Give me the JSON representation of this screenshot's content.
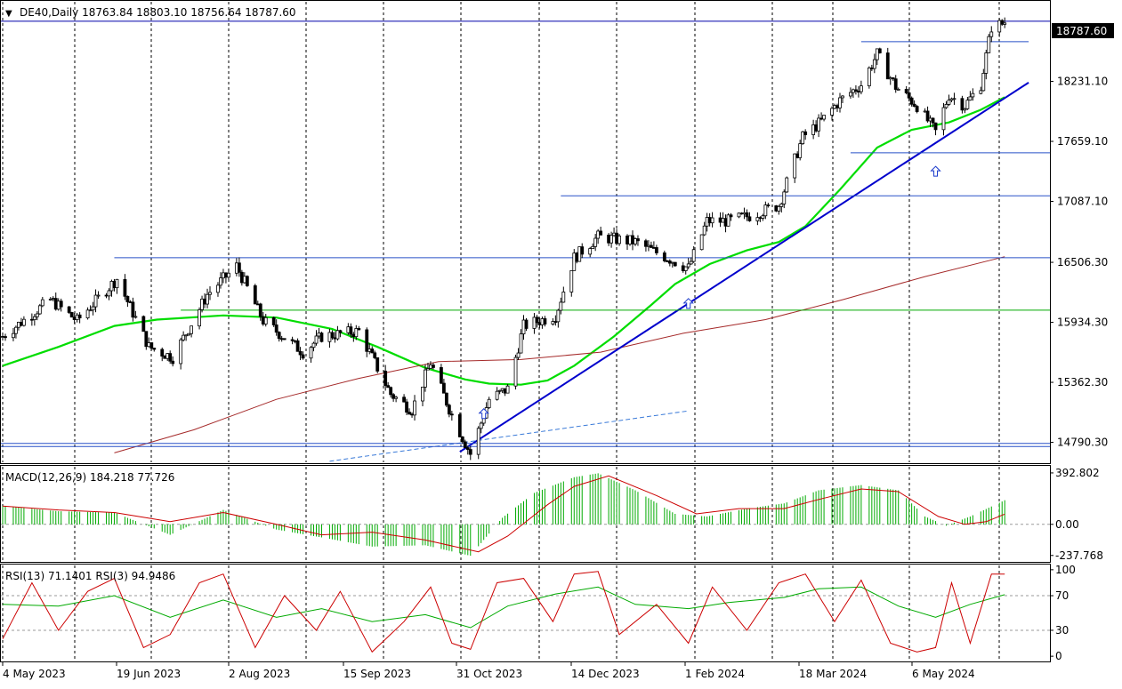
{
  "header": {
    "symbol_caret": "▼",
    "ohlc_text": "DE40,Daily  18763.84 18803.10 18756.64 18787.60"
  },
  "chart_data": [
    {
      "type": "candlestick",
      "symbol": "DE40",
      "timeframe": "Daily",
      "last": {
        "open": 18763.84,
        "high": 18803.1,
        "low": 18756.64,
        "close": 18787.6
      },
      "price_tag": "18787.60",
      "y_ticks": [
        "18231.10",
        "17659.10",
        "17087.10",
        "16506.30",
        "15934.30",
        "15362.30",
        "14790.30"
      ],
      "y_tick_values": [
        18231.1,
        17659.1,
        17087.1,
        16506.3,
        15934.3,
        15362.3,
        14790.3
      ],
      "ylim": [
        14600,
        18990
      ],
      "x_ticks": [
        "4 May 2023",
        "19 Jun 2023",
        "2 Aug 2023",
        "15 Sep 2023",
        "31 Oct 2023",
        "14 Dec 2023",
        "1 Feb 2024",
        "18 Mar 2024",
        "6 May 2024"
      ],
      "grid": "vertical dashed",
      "close_path": [
        [
          "2023-05-04",
          15800
        ],
        [
          "2023-05-22",
          16150
        ],
        [
          "2023-06-01",
          15950
        ],
        [
          "2023-06-16",
          16350
        ],
        [
          "2023-06-28",
          15700
        ],
        [
          "2023-07-07",
          15600
        ],
        [
          "2023-07-20",
          16200
        ],
        [
          "2023-07-31",
          16470
        ],
        [
          "2023-08-10",
          15950
        ],
        [
          "2023-08-25",
          15650
        ],
        [
          "2023-09-01",
          15800
        ],
        [
          "2023-09-15",
          15850
        ],
        [
          "2023-09-27",
          15250
        ],
        [
          "2023-10-05",
          15100
        ],
        [
          "2023-10-12",
          15550
        ],
        [
          "2023-10-20",
          15050
        ],
        [
          "2023-10-27",
          14680
        ],
        [
          "2023-11-03",
          15200
        ],
        [
          "2023-11-10",
          15300
        ],
        [
          "2023-11-16",
          15900
        ],
        [
          "2023-11-28",
          16000
        ],
        [
          "2023-12-05",
          16550
        ],
        [
          "2023-12-14",
          16750
        ],
        [
          "2023-12-28",
          16700
        ],
        [
          "2024-01-05",
          16600
        ],
        [
          "2024-01-17",
          16450
        ],
        [
          "2024-01-24",
          16900
        ],
        [
          "2024-02-01",
          16900
        ],
        [
          "2024-02-09",
          16950
        ],
        [
          "2024-02-20",
          17050
        ],
        [
          "2024-02-29",
          17700
        ],
        [
          "2024-03-07",
          17850
        ],
        [
          "2024-03-14",
          18050
        ],
        [
          "2024-03-22",
          18200
        ],
        [
          "2024-03-28",
          18490
        ],
        [
          "2024-04-04",
          18180
        ],
        [
          "2024-04-12",
          18000
        ],
        [
          "2024-04-19",
          17750
        ],
        [
          "2024-04-24",
          18100
        ],
        [
          "2024-04-30",
          18000
        ],
        [
          "2024-05-06",
          18200
        ],
        [
          "2024-05-10",
          18750
        ],
        [
          "2024-05-15",
          18787.6
        ]
      ],
      "overlays": [
        {
          "kind": "moving_average_fast",
          "color": "#00dd00",
          "points": [
            [
              "2023-05-04",
              15520
            ],
            [
              "2023-05-25",
              15700
            ],
            [
              "2023-06-15",
              15900
            ],
            [
              "2023-07-01",
              15960
            ],
            [
              "2023-07-26",
              16000
            ],
            [
              "2023-08-15",
              15980
            ],
            [
              "2023-09-05",
              15870
            ],
            [
              "2023-09-22",
              15700
            ],
            [
              "2023-10-10",
              15500
            ],
            [
              "2023-10-25",
              15390
            ],
            [
              "2023-11-03",
              15350
            ],
            [
              "2023-11-15",
              15340
            ],
            [
              "2023-11-25",
              15380
            ],
            [
              "2023-12-05",
              15520
            ],
            [
              "2023-12-20",
              15800
            ],
            [
              "2024-01-03",
              16100
            ],
            [
              "2024-01-12",
              16300
            ],
            [
              "2024-01-25",
              16490
            ],
            [
              "2024-02-08",
              16620
            ],
            [
              "2024-02-20",
              16700
            ],
            [
              "2024-03-01",
              16850
            ],
            [
              "2024-03-14",
              17200
            ],
            [
              "2024-03-28",
              17600
            ],
            [
              "2024-04-10",
              17770
            ],
            [
              "2024-04-24",
              17840
            ],
            [
              "2024-05-06",
              17960
            ],
            [
              "2024-05-15",
              18080
            ]
          ]
        },
        {
          "kind": "moving_average_slow",
          "color": "#a52a2a",
          "points": [
            [
              "2023-06-15",
              14690
            ],
            [
              "2023-07-15",
              14910
            ],
            [
              "2023-08-15",
              15200
            ],
            [
              "2023-09-15",
              15400
            ],
            [
              "2023-10-15",
              15560
            ],
            [
              "2023-11-15",
              15580
            ],
            [
              "2023-12-15",
              15650
            ],
            [
              "2024-01-15",
              15830
            ],
            [
              "2024-02-15",
              15960
            ],
            [
              "2024-03-15",
              16150
            ],
            [
              "2024-04-15",
              16370
            ],
            [
              "2024-05-15",
              16560
            ]
          ]
        },
        {
          "kind": "trendline",
          "color": "#0000cc",
          "points": [
            [
              "2023-10-23",
              14700
            ],
            [
              "2024-05-24",
              18220
            ]
          ]
        },
        {
          "kind": "trendline_dashed",
          "color": "#3a7ad8",
          "points": [
            [
              "2023-09-04",
              14610
            ],
            [
              "2024-01-17",
              15090
            ]
          ]
        },
        {
          "kind": "horizontal",
          "color": "#2850c8",
          "price": 16550,
          "from": "2023-06-15",
          "to": null
        },
        {
          "kind": "horizontal",
          "color": "#2850c8",
          "price": 17140,
          "from": "2023-11-30",
          "to": null
        },
        {
          "kind": "horizontal",
          "color": "#2850c8",
          "price": 17550,
          "from": "2024-03-18",
          "to": null
        },
        {
          "kind": "horizontal",
          "color": "#2850c8",
          "price": 18610,
          "from": "2024-03-22",
          "to": "2024-05-24"
        },
        {
          "kind": "horizontal",
          "color": "#2850c8",
          "price": 14780,
          "from": null,
          "to": null
        },
        {
          "kind": "horizontal",
          "color": "#2850c8",
          "price": 14750,
          "from": null,
          "to": null
        },
        {
          "kind": "horizontal",
          "color": "#00aa00",
          "price": 16050,
          "from": "2023-07-10",
          "to": null
        },
        {
          "kind": "horizontal",
          "color": "#0000aa",
          "price": 18805,
          "from": null,
          "to": null
        }
      ],
      "arrow_marks": [
        {
          "date": "2023-11-01",
          "price": 15060
        },
        {
          "date": "2024-01-17",
          "price": 16110
        },
        {
          "date": "2024-04-19",
          "price": 17370
        }
      ]
    },
    {
      "type": "histogram",
      "indicator": "MACD",
      "label": "MACD(12,26,9) 184.218 77.726",
      "y_ticks": [
        "392.802",
        "0.00",
        "-237.768"
      ],
      "y_tick_values": [
        392.802,
        0,
        -237.768
      ],
      "ylim": [
        -280,
        440
      ],
      "histogram_color": "#00aa00",
      "signal_color": "#cc0000",
      "histogram": [
        [
          "2023-05-04",
          140
        ],
        [
          "2023-05-25",
          100
        ],
        [
          "2023-06-15",
          90
        ],
        [
          "2023-07-06",
          -80
        ],
        [
          "2023-07-26",
          110
        ],
        [
          "2023-08-15",
          -40
        ],
        [
          "2023-09-01",
          -100
        ],
        [
          "2023-09-20",
          -170
        ],
        [
          "2023-10-10",
          -160
        ],
        [
          "2023-10-27",
          -240
        ],
        [
          "2023-11-08",
          50
        ],
        [
          "2023-11-20",
          240
        ],
        [
          "2023-12-05",
          360
        ],
        [
          "2023-12-14",
          390
        ],
        [
          "2023-12-28",
          260
        ],
        [
          "2024-01-12",
          80
        ],
        [
          "2024-01-24",
          60
        ],
        [
          "2024-02-08",
          120
        ],
        [
          "2024-02-22",
          160
        ],
        [
          "2024-03-06",
          260
        ],
        [
          "2024-03-22",
          300
        ],
        [
          "2024-04-05",
          260
        ],
        [
          "2024-04-15",
          60
        ],
        [
          "2024-04-23",
          -10
        ],
        [
          "2024-05-02",
          60
        ],
        [
          "2024-05-15",
          184.218
        ]
      ],
      "signal": [
        [
          "2023-05-04",
          140
        ],
        [
          "2023-05-25",
          110
        ],
        [
          "2023-06-15",
          90
        ],
        [
          "2023-07-06",
          20
        ],
        [
          "2023-07-26",
          90
        ],
        [
          "2023-08-15",
          0
        ],
        [
          "2023-09-01",
          -80
        ],
        [
          "2023-09-20",
          -60
        ],
        [
          "2023-10-10",
          -120
        ],
        [
          "2023-10-30",
          -210
        ],
        [
          "2023-11-10",
          -90
        ],
        [
          "2023-11-25",
          150
        ],
        [
          "2023-12-05",
          290
        ],
        [
          "2023-12-18",
          370
        ],
        [
          "2024-01-05",
          220
        ],
        [
          "2024-01-20",
          80
        ],
        [
          "2024-02-05",
          120
        ],
        [
          "2024-02-22",
          120
        ],
        [
          "2024-03-06",
          190
        ],
        [
          "2024-03-22",
          270
        ],
        [
          "2024-04-05",
          250
        ],
        [
          "2024-04-20",
          60
        ],
        [
          "2024-04-30",
          0
        ],
        [
          "2024-05-08",
          20
        ],
        [
          "2024-05-15",
          77.726
        ]
      ]
    },
    {
      "type": "line",
      "indicator": "RSI",
      "label": "RSI(13) 71.1401  RSI(3) 94.9486",
      "y_ticks": [
        "100",
        "70",
        "30",
        "0"
      ],
      "y_tick_values": [
        100,
        70,
        30,
        0
      ],
      "ylim": [
        -5,
        105
      ],
      "levels": [
        70,
        30
      ],
      "series": [
        {
          "name": "RSI(13)",
          "color": "#00aa00",
          "values": [
            [
              "2023-05-04",
              60
            ],
            [
              "2023-05-25",
              58
            ],
            [
              "2023-06-15",
              70
            ],
            [
              "2023-07-06",
              45
            ],
            [
              "2023-07-26",
              65
            ],
            [
              "2023-08-15",
              45
            ],
            [
              "2023-09-01",
              55
            ],
            [
              "2023-09-20",
              40
            ],
            [
              "2023-10-10",
              48
            ],
            [
              "2023-10-27",
              33
            ],
            [
              "2023-11-10",
              58
            ],
            [
              "2023-11-28",
              72
            ],
            [
              "2023-12-14",
              80
            ],
            [
              "2023-12-28",
              60
            ],
            [
              "2024-01-17",
              55
            ],
            [
              "2024-02-01",
              62
            ],
            [
              "2024-02-22",
              68
            ],
            [
              "2024-03-06",
              78
            ],
            [
              "2024-03-22",
              80
            ],
            [
              "2024-04-05",
              58
            ],
            [
              "2024-04-19",
              45
            ],
            [
              "2024-05-02",
              60
            ],
            [
              "2024-05-15",
              71.1401
            ]
          ]
        },
        {
          "name": "RSI(3)",
          "color": "#cc0000",
          "values": [
            [
              "2023-05-04",
              20
            ],
            [
              "2023-05-15",
              85
            ],
            [
              "2023-05-25",
              30
            ],
            [
              "2023-06-05",
              75
            ],
            [
              "2023-06-15",
              90
            ],
            [
              "2023-06-26",
              10
            ],
            [
              "2023-07-06",
              25
            ],
            [
              "2023-07-17",
              85
            ],
            [
              "2023-07-26",
              95
            ],
            [
              "2023-08-07",
              10
            ],
            [
              "2023-08-18",
              70
            ],
            [
              "2023-08-30",
              30
            ],
            [
              "2023-09-08",
              75
            ],
            [
              "2023-09-20",
              5
            ],
            [
              "2023-10-02",
              40
            ],
            [
              "2023-10-12",
              80
            ],
            [
              "2023-10-20",
              15
            ],
            [
              "2023-10-27",
              8
            ],
            [
              "2023-11-06",
              85
            ],
            [
              "2023-11-16",
              90
            ],
            [
              "2023-11-27",
              40
            ],
            [
              "2023-12-05",
              95
            ],
            [
              "2023-12-14",
              98
            ],
            [
              "2023-12-22",
              25
            ],
            [
              "2024-01-05",
              60
            ],
            [
              "2024-01-17",
              15
            ],
            [
              "2024-01-26",
              80
            ],
            [
              "2024-02-08",
              30
            ],
            [
              "2024-02-20",
              85
            ],
            [
              "2024-03-01",
              95
            ],
            [
              "2024-03-12",
              40
            ],
            [
              "2024-03-22",
              88
            ],
            [
              "2024-04-02",
              15
            ],
            [
              "2024-04-12",
              5
            ],
            [
              "2024-04-19",
              10
            ],
            [
              "2024-04-25",
              85
            ],
            [
              "2024-05-02",
              15
            ],
            [
              "2024-05-10",
              95
            ],
            [
              "2024-05-15",
              94.9486
            ]
          ]
        }
      ]
    }
  ]
}
